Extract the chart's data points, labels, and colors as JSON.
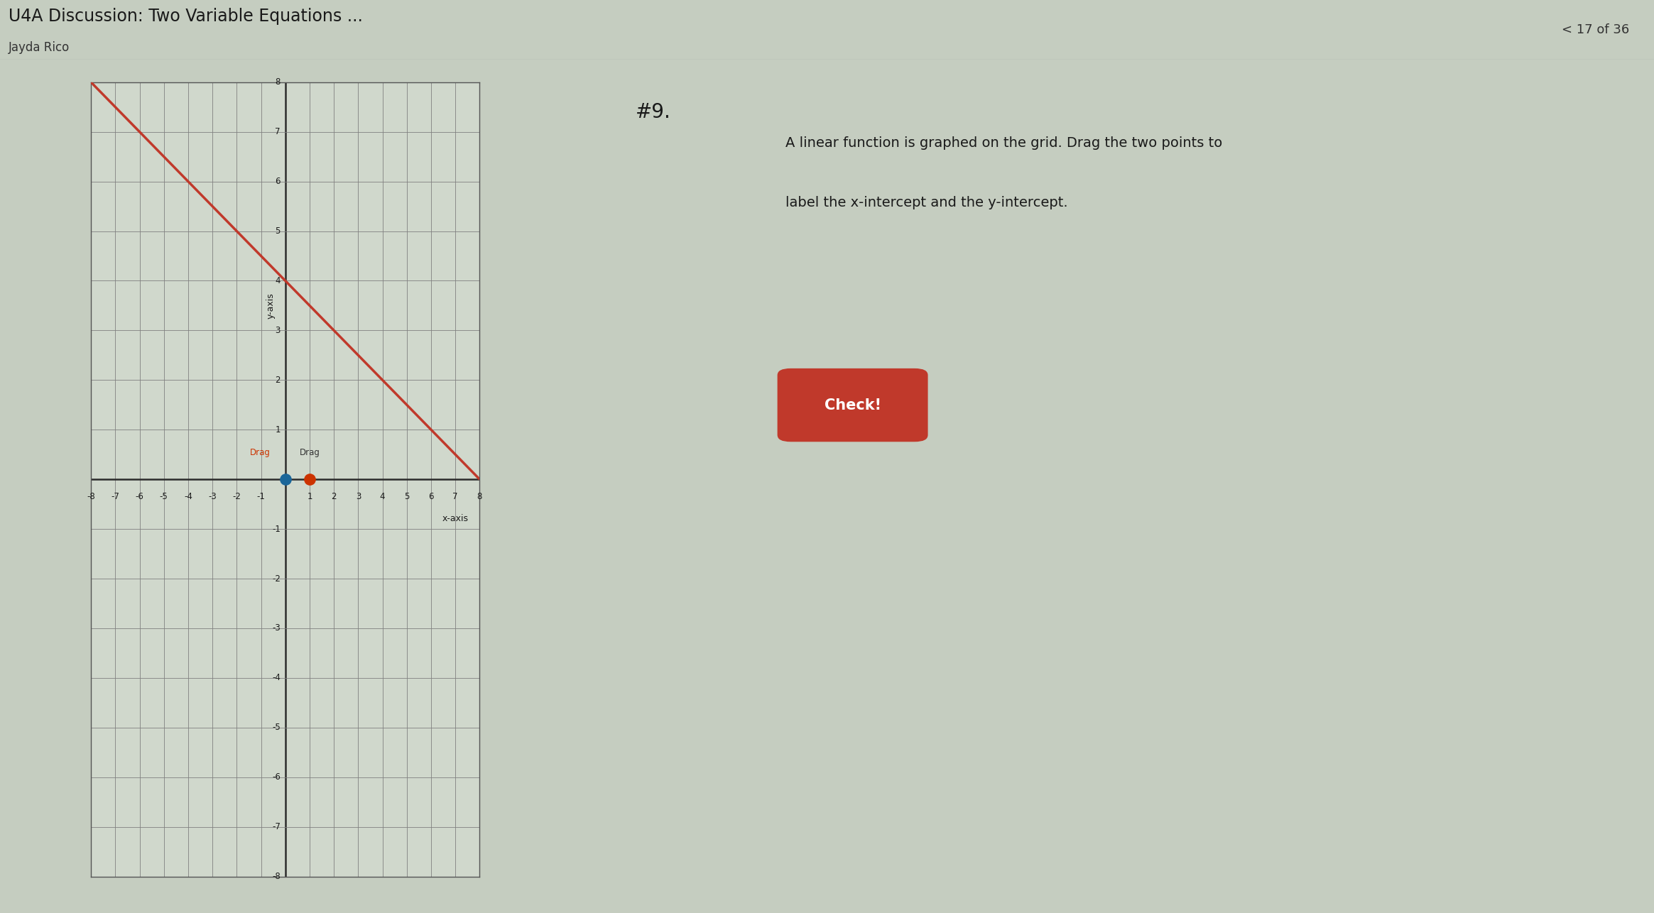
{
  "bg_color": "#c5cdc0",
  "header_bg": "#dde3da",
  "title_text": "U4A Discussion: Two Variable Equations ...",
  "subtitle_text": "Jayda Rico",
  "nav_text": "< 17 of 36",
  "problem_num": "#9.",
  "instructions_line1": "A linear function is graphed on the grid. Drag the two points to",
  "instructions_line2": "label the x-intercept and the y-intercept.",
  "check_text": "Check!",
  "check_color": "#c0392b",
  "grid_bg": "#d0d8cc",
  "grid_color": "#808080",
  "axis_color": "#2c2c2c",
  "line_color": "#c0392b",
  "line_slope": -0.5,
  "line_intercept_y": 4.0,
  "x_min": -8,
  "x_max": 8,
  "y_min": -8,
  "y_max": 8,
  "drag1_label": "Drag",
  "drag2_label": "Drag",
  "drag1_color": "#cc3300",
  "drag2_color": "#1a6699",
  "drag1_x": 0,
  "drag1_y": 0,
  "drag2_x": 1,
  "drag2_y": 0,
  "ylabel": "y-axis",
  "xlabel": "x-axis"
}
